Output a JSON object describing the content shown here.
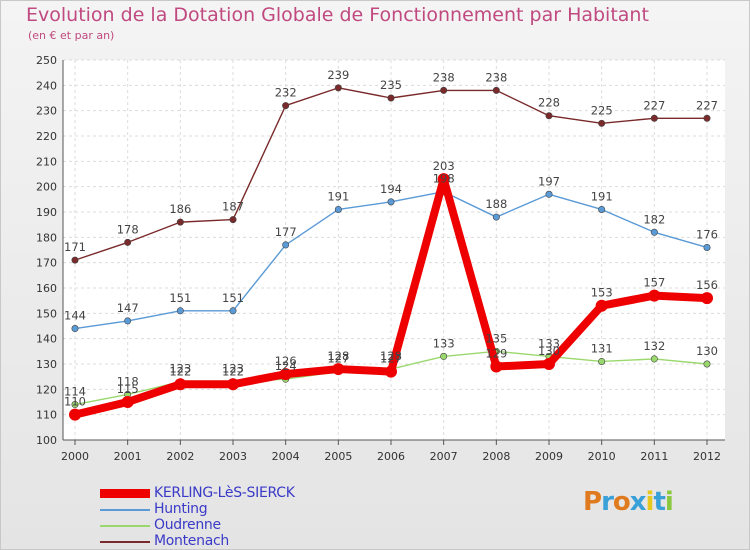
{
  "chart_data": {
    "type": "line",
    "title": "Evolution de la Dotation Globale de Fonctionnement par Habitant",
    "subtitle": "(en € et par an)",
    "xlabel": "",
    "ylabel": "",
    "ylim": [
      100,
      250
    ],
    "yticks": [
      100,
      110,
      120,
      130,
      140,
      150,
      160,
      170,
      180,
      190,
      200,
      210,
      220,
      230,
      240,
      250
    ],
    "categories": [
      "2000",
      "2001",
      "2002",
      "2003",
      "2004",
      "2005",
      "2006",
      "2007",
      "2008",
      "2009",
      "2010",
      "2011",
      "2012"
    ],
    "grid": true,
    "legend_position": "bottom-left",
    "series": [
      {
        "name": "Montenach",
        "color": "#7a2a2a",
        "values": [
          171,
          178,
          186,
          187,
          232,
          239,
          235,
          238,
          238,
          228,
          225,
          227,
          227
        ]
      },
      {
        "name": "Hunting",
        "color": "#5a9ad6",
        "values": [
          144,
          147,
          151,
          151,
          177,
          191,
          194,
          198,
          188,
          197,
          191,
          182,
          176
        ]
      },
      {
        "name": "Oudrenne",
        "color": "#9ad86e",
        "values": [
          114,
          118,
          123,
          123,
          124,
          127,
          128,
          133,
          135,
          133,
          131,
          132,
          130
        ]
      },
      {
        "name": "KERLING-LèS-SIERCK",
        "color": "#ee0000",
        "values": [
          110,
          115,
          122,
          122,
          126,
          128,
          127,
          203,
          129,
          130,
          153,
          157,
          156
        ]
      }
    ]
  },
  "legend": {
    "items": [
      "KERLING-LèS-SIERCK",
      "Hunting",
      "Oudrenne",
      "Montenach"
    ]
  },
  "brand": {
    "letters": [
      "P",
      "r",
      "o",
      "x",
      "i",
      "t",
      "i"
    ],
    "colors": [
      "#e07a1e",
      "#3aa0d8",
      "#e07a1e",
      "#3aa0d8",
      "#e6c81e",
      "#3aa0d8",
      "#8ac840"
    ]
  }
}
